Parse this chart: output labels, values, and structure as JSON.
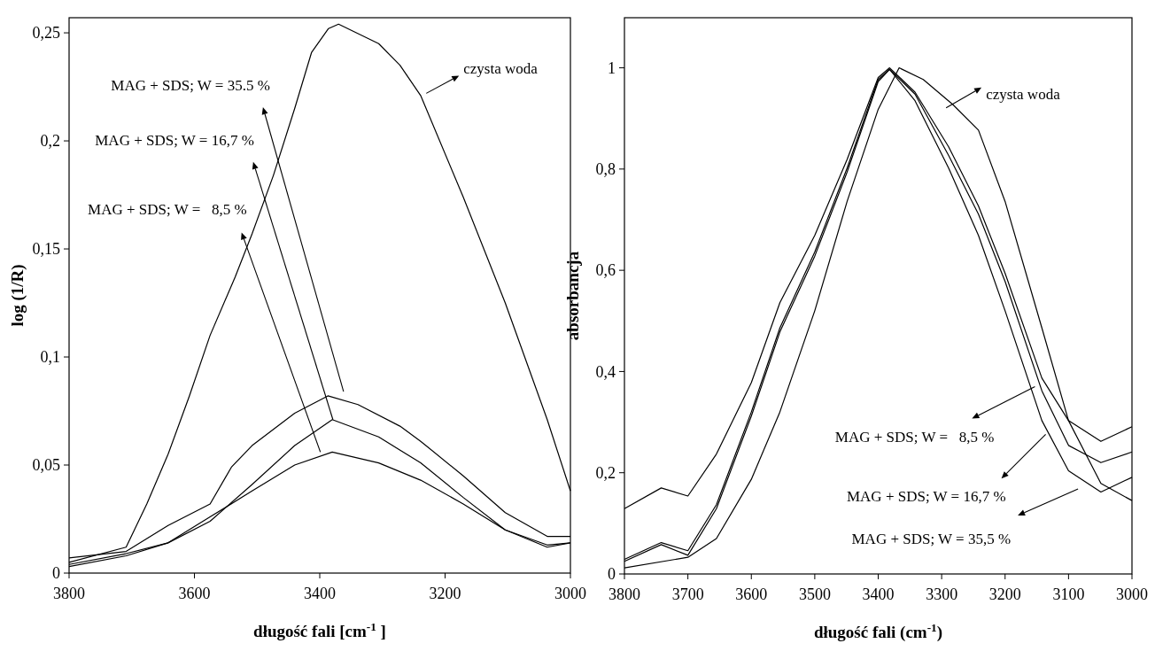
{
  "chart_data": [
    {
      "type": "line",
      "xlabel": "długość fali [cm$^{-1}$ ]",
      "ylabel": "log (1/R)",
      "xlim": [
        3800,
        3000
      ],
      "ylim": [
        0,
        0.257
      ],
      "xticks": [
        3800,
        3600,
        3400,
        3200,
        3000
      ],
      "yticks": [
        {
          "value": 0,
          "label": "0"
        },
        {
          "value": 0.05,
          "label": "0,05"
        },
        {
          "value": 0.1,
          "label": "0,1"
        },
        {
          "value": 0.15,
          "label": "0,15"
        },
        {
          "value": 0.2,
          "label": "0,2"
        },
        {
          "value": 0.25,
          "label": "0,25"
        }
      ],
      "series": [
        {
          "color": "#000000",
          "x": [
            3800,
            3709,
            3676,
            3642,
            3608,
            3575,
            3535,
            3508,
            3474,
            3440,
            3413,
            3386,
            3370,
            3306,
            3272,
            3239,
            3171,
            3104,
            3037,
            3000
          ],
          "values": [
            0.005,
            0.012,
            0.032,
            0.055,
            0.082,
            0.11,
            0.137,
            0.157,
            0.184,
            0.215,
            0.241,
            0.252,
            0.254,
            0.245,
            0.235,
            0.221,
            0.174,
            0.125,
            0.071,
            0.038
          ]
        },
        {
          "color": "#000000",
          "x": [
            3800,
            3709,
            3642,
            3575,
            3541,
            3508,
            3440,
            3387,
            3339,
            3272,
            3239,
            3171,
            3104,
            3037,
            3000
          ],
          "values": [
            0.007,
            0.01,
            0.022,
            0.032,
            0.049,
            0.059,
            0.074,
            0.082,
            0.078,
            0.068,
            0.061,
            0.045,
            0.028,
            0.017,
            0.017
          ]
        },
        {
          "color": "#000000",
          "x": [
            3800,
            3709,
            3642,
            3575,
            3508,
            3440,
            3380,
            3306,
            3239,
            3171,
            3104,
            3037,
            3000
          ],
          "values": [
            0.004,
            0.009,
            0.014,
            0.024,
            0.041,
            0.059,
            0.071,
            0.063,
            0.051,
            0.035,
            0.02,
            0.013,
            0.014
          ]
        },
        {
          "color": "#000000",
          "x": [
            3800,
            3709,
            3642,
            3575,
            3508,
            3440,
            3380,
            3306,
            3239,
            3171,
            3104,
            3037,
            3000
          ],
          "values": [
            0.003,
            0.008,
            0.014,
            0.026,
            0.038,
            0.05,
            0.056,
            0.051,
            0.043,
            0.032,
            0.02,
            0.012,
            0.014
          ]
        }
      ],
      "annotations": [
        "czysta woda",
        "MAG + SDS; W = 35.5 %",
        "MAG + SDS; W = 16,7 %",
        "MAG + SDS; W =   8,5 %"
      ]
    },
    {
      "type": "line",
      "xlabel": "długość fali (cm$^{-1}$)",
      "ylabel": "absorbancja",
      "xlim": [
        3800,
        3000
      ],
      "ylim": [
        0,
        1.099
      ],
      "xticks": [
        3800,
        3700,
        3600,
        3500,
        3400,
        3300,
        3200,
        3100,
        3000
      ],
      "yticks": [
        {
          "value": 0,
          "label": "0"
        },
        {
          "value": 0.2,
          "label": "0,2"
        },
        {
          "value": 0.4,
          "label": "0,4"
        },
        {
          "value": 0.6,
          "label": "0,6"
        },
        {
          "value": 0.8,
          "label": "0,8"
        },
        {
          "value": 1,
          "label": "1"
        }
      ],
      "series": [
        {
          "color": "#000000",
          "x": [
            3800,
            3700,
            3655,
            3600,
            3555,
            3500,
            3449,
            3400,
            3367,
            3329,
            3282,
            3242,
            3200,
            3142,
            3100,
            3049,
            3000
          ],
          "values": [
            0.012,
            0.033,
            0.07,
            0.187,
            0.32,
            0.52,
            0.736,
            0.918,
            1.0,
            0.977,
            0.927,
            0.877,
            0.736,
            0.486,
            0.303,
            0.179,
            0.145
          ]
        },
        {
          "color": "#000000",
          "x": [
            3800,
            3742,
            3700,
            3655,
            3600,
            3555,
            3500,
            3449,
            3400,
            3382,
            3342,
            3289,
            3242,
            3200,
            3142,
            3100,
            3049,
            3000
          ],
          "values": [
            0.129,
            0.17,
            0.154,
            0.237,
            0.378,
            0.536,
            0.669,
            0.819,
            0.981,
            1.0,
            0.952,
            0.844,
            0.727,
            0.594,
            0.387,
            0.303,
            0.262,
            0.291
          ]
        },
        {
          "color": "#000000",
          "x": [
            3800,
            3742,
            3700,
            3655,
            3600,
            3555,
            3500,
            3449,
            3400,
            3382,
            3342,
            3289,
            3242,
            3200,
            3142,
            3100,
            3049,
            3000
          ],
          "values": [
            0.029,
            0.062,
            0.046,
            0.137,
            0.32,
            0.486,
            0.636,
            0.802,
            0.977,
            0.997,
            0.948,
            0.827,
            0.711,
            0.578,
            0.362,
            0.254,
            0.22,
            0.241
          ]
        },
        {
          "color": "#000000",
          "x": [
            3800,
            3742,
            3700,
            3655,
            3600,
            3555,
            3500,
            3449,
            3400,
            3382,
            3342,
            3289,
            3242,
            3200,
            3142,
            3100,
            3049,
            3000
          ],
          "values": [
            0.025,
            0.058,
            0.037,
            0.129,
            0.312,
            0.478,
            0.628,
            0.794,
            0.973,
            0.997,
            0.935,
            0.802,
            0.669,
            0.52,
            0.303,
            0.204,
            0.162,
            0.191
          ]
        }
      ],
      "annotations": [
        "czysta woda",
        "MAG + SDS; W =   8,5 %",
        {
          "text": "MAG + SDS; W = 16,7 %",
          "x": 3136,
          "y": 0.276
        },
        "MAG + SDS; W = 35,5 %"
      ]
    }
  ]
}
